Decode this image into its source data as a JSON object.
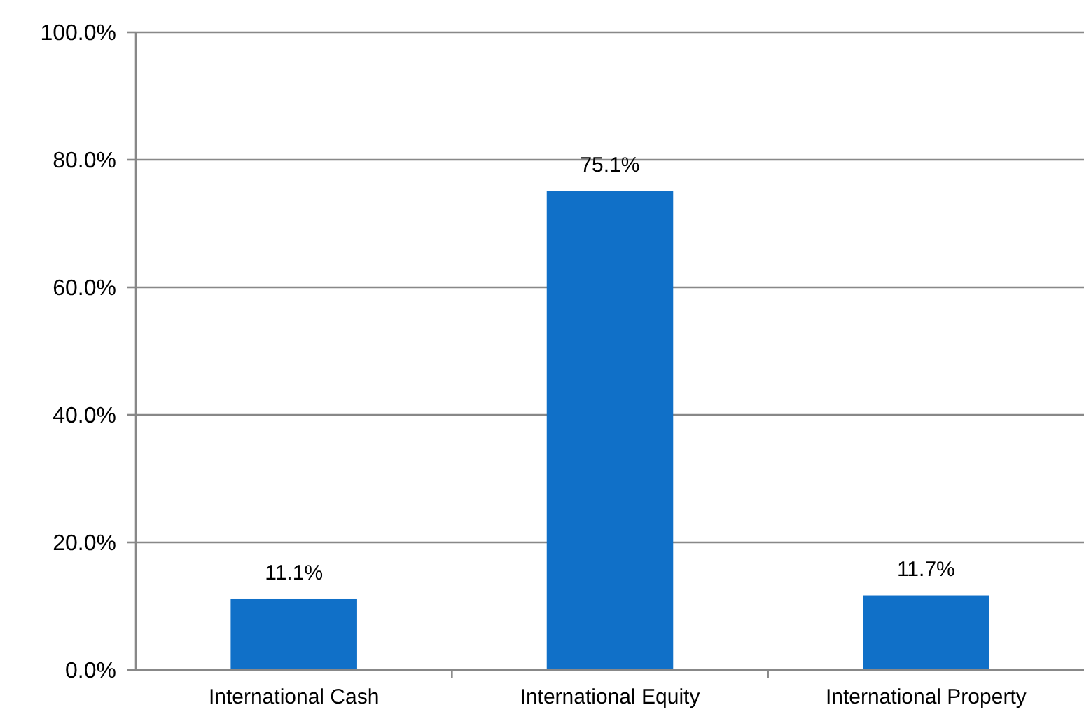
{
  "chart_data": {
    "type": "bar",
    "categories": [
      "International Cash",
      "International Equity",
      "International Property"
    ],
    "values": [
      11.1,
      75.1,
      11.7
    ],
    "color": "#1070c8",
    "value_labels": [
      "11.1%",
      "75.1%",
      "11.7%"
    ],
    "ylim": [
      0,
      100
    ],
    "yticks": [
      {
        "value": 0,
        "label": "0.0%"
      },
      {
        "value": 20,
        "label": "20.0%"
      },
      {
        "value": 40,
        "label": "40.0%"
      },
      {
        "value": 60,
        "label": "60.0%"
      },
      {
        "value": 80,
        "label": "80.0%"
      },
      {
        "value": 100,
        "label": "100.0%"
      }
    ],
    "grid": "y"
  }
}
